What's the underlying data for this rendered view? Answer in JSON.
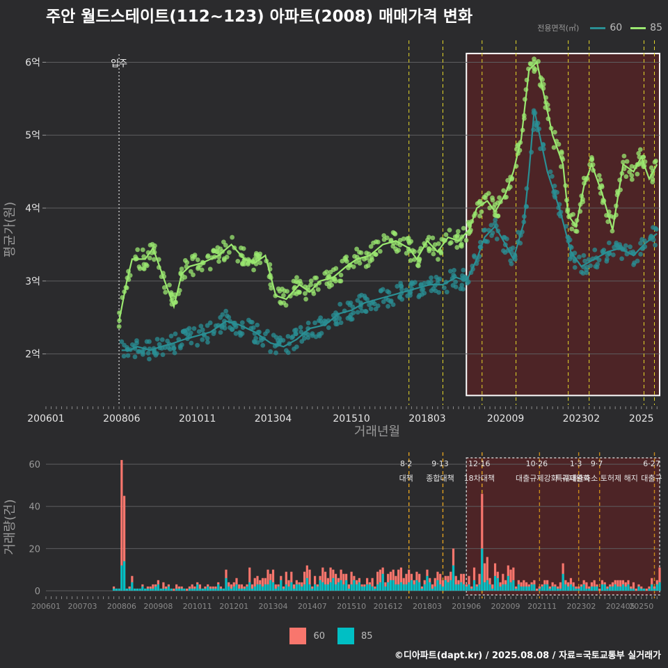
{
  "title": "주안 월드스테이트(112~123) 아파트(2008) 매매가격 변화",
  "legend_area": {
    "title": "전용면적(㎡)",
    "items": [
      {
        "label": "60",
        "color": "#2a8f94"
      },
      {
        "label": "85",
        "color": "#9be870"
      }
    ]
  },
  "legend_volume": {
    "items": [
      {
        "label": "60",
        "color": "#f8766d"
      },
      {
        "label": "85",
        "color": "#00bfc4"
      }
    ]
  },
  "caption": "©디아파트(dapt.kr) / 2025.08.08 / 자료=국토교통부 실거래가",
  "chart_data": [
    {
      "type": "line",
      "name": "price",
      "xlabel": "거래년월",
      "ylabel": "평균가(원)",
      "x_ticks": [
        "200601",
        "200806",
        "201011",
        "201304",
        "201510",
        "201803",
        "202009",
        "202302",
        "2025"
      ],
      "y_ticks": [
        "2억",
        "3억",
        "4억",
        "5억",
        "6억"
      ],
      "ylim": [
        1.3,
        6.3
      ],
      "xlim": [
        "2006-01",
        "2025-08"
      ],
      "annotation_move_in": {
        "label": "입주",
        "date": "2008-05"
      },
      "policy_dates": [
        "2017-08",
        "2018-09",
        "2019-12",
        "2021-01",
        "2022-09",
        "2023-05",
        "2025-02",
        "2025-06"
      ],
      "highlight": {
        "from": "2019-06",
        "to": "2025-08"
      },
      "series": [
        {
          "name": "85",
          "color": "#9be870",
          "points": [
            [
              "2008-05",
              2.45
            ],
            [
              "2008-08",
              3.0
            ],
            [
              "2008-10",
              3.3
            ],
            [
              "2009-03",
              3.3
            ],
            [
              "2009-06",
              3.45
            ],
            [
              "2009-11",
              2.95
            ],
            [
              "2010-02",
              2.65
            ],
            [
              "2010-05",
              3.1
            ],
            [
              "2010-08",
              3.2
            ],
            [
              "2011-01",
              3.25
            ],
            [
              "2011-07",
              3.35
            ],
            [
              "2011-12",
              3.5
            ],
            [
              "2012-05",
              3.3
            ],
            [
              "2012-09",
              3.25
            ],
            [
              "2013-01",
              3.35
            ],
            [
              "2013-05",
              2.8
            ],
            [
              "2013-09",
              2.75
            ],
            [
              "2014-02",
              2.95
            ],
            [
              "2014-06",
              2.85
            ],
            [
              "2014-10",
              3.0
            ],
            [
              "2015-03",
              3.05
            ],
            [
              "2015-08",
              3.2
            ],
            [
              "2015-12",
              3.3
            ],
            [
              "2016-05",
              3.35
            ],
            [
              "2016-10",
              3.5
            ],
            [
              "2017-03",
              3.55
            ],
            [
              "2017-08",
              3.45
            ],
            [
              "2017-11",
              3.3
            ],
            [
              "2018-03",
              3.55
            ],
            [
              "2018-07",
              3.4
            ],
            [
              "2018-11",
              3.6
            ],
            [
              "2019-03",
              3.55
            ],
            [
              "2019-07",
              3.7
            ],
            [
              "2019-10",
              4.0
            ],
            [
              "2020-02",
              4.1
            ],
            [
              "2020-05",
              3.95
            ],
            [
              "2020-09",
              4.2
            ],
            [
              "2020-12",
              4.5
            ],
            [
              "2021-03",
              4.95
            ],
            [
              "2021-06",
              5.9
            ],
            [
              "2021-09",
              6.0
            ],
            [
              "2021-12",
              5.5
            ],
            [
              "2022-03",
              5.0
            ],
            [
              "2022-07",
              4.6
            ],
            [
              "2022-09",
              3.9
            ],
            [
              "2022-12",
              3.75
            ],
            [
              "2023-03",
              4.3
            ],
            [
              "2023-06",
              4.6
            ],
            [
              "2023-10",
              4.2
            ],
            [
              "2024-02",
              3.7
            ],
            [
              "2024-06",
              4.6
            ],
            [
              "2024-10",
              4.5
            ],
            [
              "2025-01",
              4.7
            ],
            [
              "2025-04",
              4.4
            ],
            [
              "2025-07",
              4.6
            ]
          ]
        },
        {
          "name": "60",
          "color": "#2a8f94",
          "points": [
            [
              "2008-06",
              2.05
            ],
            [
              "2008-09",
              2.05
            ],
            [
              "2008-12",
              2.1
            ],
            [
              "2009-05",
              2.05
            ],
            [
              "2009-09",
              2.1
            ],
            [
              "2010-02",
              2.15
            ],
            [
              "2010-06",
              2.2
            ],
            [
              "2011-04",
              2.3
            ],
            [
              "2011-10",
              2.45
            ],
            [
              "2012-03",
              2.4
            ],
            [
              "2012-09",
              2.3
            ],
            [
              "2013-03",
              2.15
            ],
            [
              "2013-08",
              2.1
            ],
            [
              "2014-01",
              2.2
            ],
            [
              "2014-06",
              2.35
            ],
            [
              "2014-12",
              2.4
            ],
            [
              "2015-05",
              2.55
            ],
            [
              "2015-10",
              2.6
            ],
            [
              "2016-03",
              2.7
            ],
            [
              "2016-08",
              2.75
            ],
            [
              "2017-01",
              2.8
            ],
            [
              "2017-06",
              2.85
            ],
            [
              "2017-11",
              2.9
            ],
            [
              "2018-04",
              2.95
            ],
            [
              "2018-09",
              2.95
            ],
            [
              "2019-02",
              3.05
            ],
            [
              "2019-06",
              3.0
            ],
            [
              "2019-10",
              3.3
            ],
            [
              "2020-01",
              3.6
            ],
            [
              "2020-05",
              3.75
            ],
            [
              "2020-09",
              3.5
            ],
            [
              "2020-12",
              3.3
            ],
            [
              "2021-04",
              3.8
            ],
            [
              "2021-06",
              4.5
            ],
            [
              "2021-08",
              5.35
            ],
            [
              "2022-01",
              4.5
            ],
            [
              "2022-06",
              3.95
            ],
            [
              "2022-10",
              3.4
            ],
            [
              "2023-02",
              3.2
            ],
            [
              "2023-07",
              3.3
            ],
            [
              "2023-12",
              3.4
            ],
            [
              "2024-05",
              3.45
            ],
            [
              "2024-10",
              3.35
            ],
            [
              "2025-02",
              3.5
            ],
            [
              "2025-07",
              3.65
            ]
          ]
        }
      ],
      "scatter_note": "individual transaction dots per series"
    },
    {
      "type": "bar",
      "name": "volume",
      "xlabel": "",
      "ylabel": "거래량(건)",
      "x_ticks": [
        "200601",
        "200703",
        "200806",
        "200908",
        "201011",
        "201201",
        "201304",
        "201407",
        "201510",
        "201612",
        "201803",
        "201906",
        "202009",
        "202111",
        "202302",
        "202405",
        "20250"
      ],
      "y_ticks": [
        0,
        20,
        40,
        60
      ],
      "ylim": [
        0,
        65
      ],
      "policy_annotations": [
        {
          "date": "2017-08",
          "label": "8·2 대책"
        },
        {
          "date": "2018-09",
          "label": "9·13 종합대책"
        },
        {
          "date": "2019-12",
          "label": "12·16 18차대책"
        },
        {
          "date": "2021-10",
          "label": "10·26 대출규제강화"
        },
        {
          "date": "2023-01",
          "label": "1·3 규제완화"
        },
        {
          "date": "2023-09",
          "label": "9·7 특례대출축소 토허제 해지"
        },
        {
          "date": "2025-06",
          "label": "6·27 대출규"
        }
      ],
      "series": [
        {
          "name": "60",
          "color": "#f8766d"
        },
        {
          "name": "85",
          "color": "#00bfc4"
        }
      ],
      "peaks": [
        {
          "date": "2008-06",
          "total": 62,
          "s85": 12
        },
        {
          "date": "2008-07",
          "total": 45,
          "s85": 14
        },
        {
          "date": "2019-12",
          "total": 46,
          "s85": 20
        }
      ]
    }
  ]
}
